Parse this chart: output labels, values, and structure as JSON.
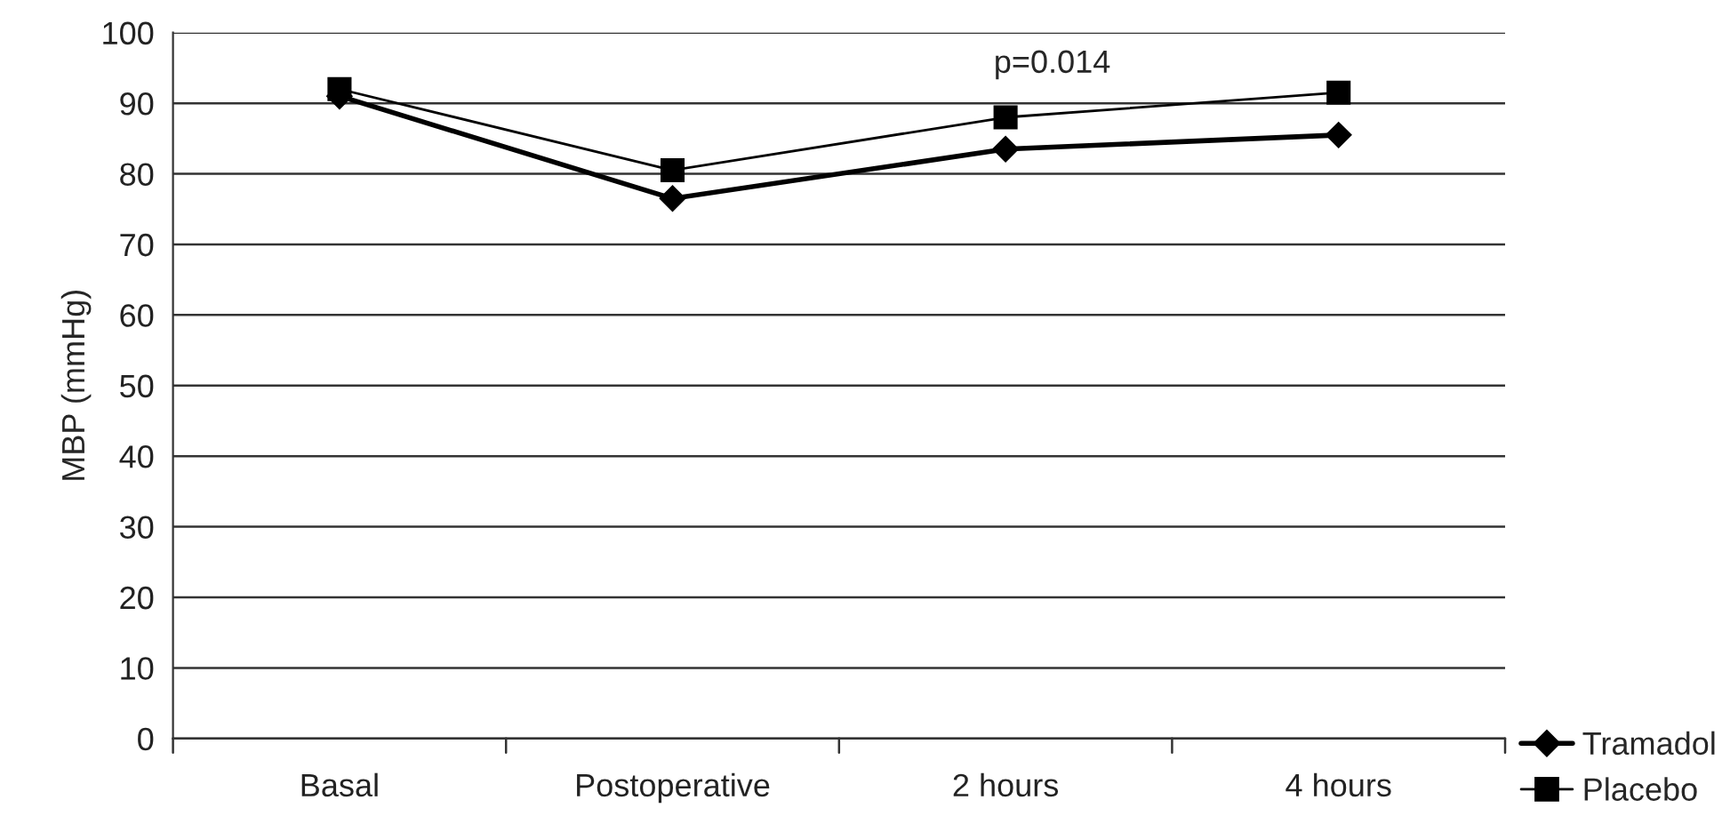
{
  "chart_data": {
    "type": "line",
    "ylabel": "MBP (mmHg)",
    "categories": [
      "Basal",
      "Postoperative",
      "2 hours",
      "4 hours"
    ],
    "series": [
      {
        "name": "Tramadol",
        "color": "#000000",
        "marker": "diamond",
        "values": [
          91,
          76.5,
          83.5,
          85.5
        ]
      },
      {
        "name": "Placebo",
        "color": "#000000",
        "marker": "square",
        "values": [
          92,
          80.5,
          88,
          91.5
        ]
      }
    ],
    "ylim": [
      0,
      100
    ],
    "yticks": [
      0,
      10,
      20,
      30,
      40,
      50,
      60,
      70,
      80,
      90,
      100
    ],
    "grid": "y",
    "legend": "bottom right",
    "annotations": [
      "p=0.014"
    ]
  }
}
